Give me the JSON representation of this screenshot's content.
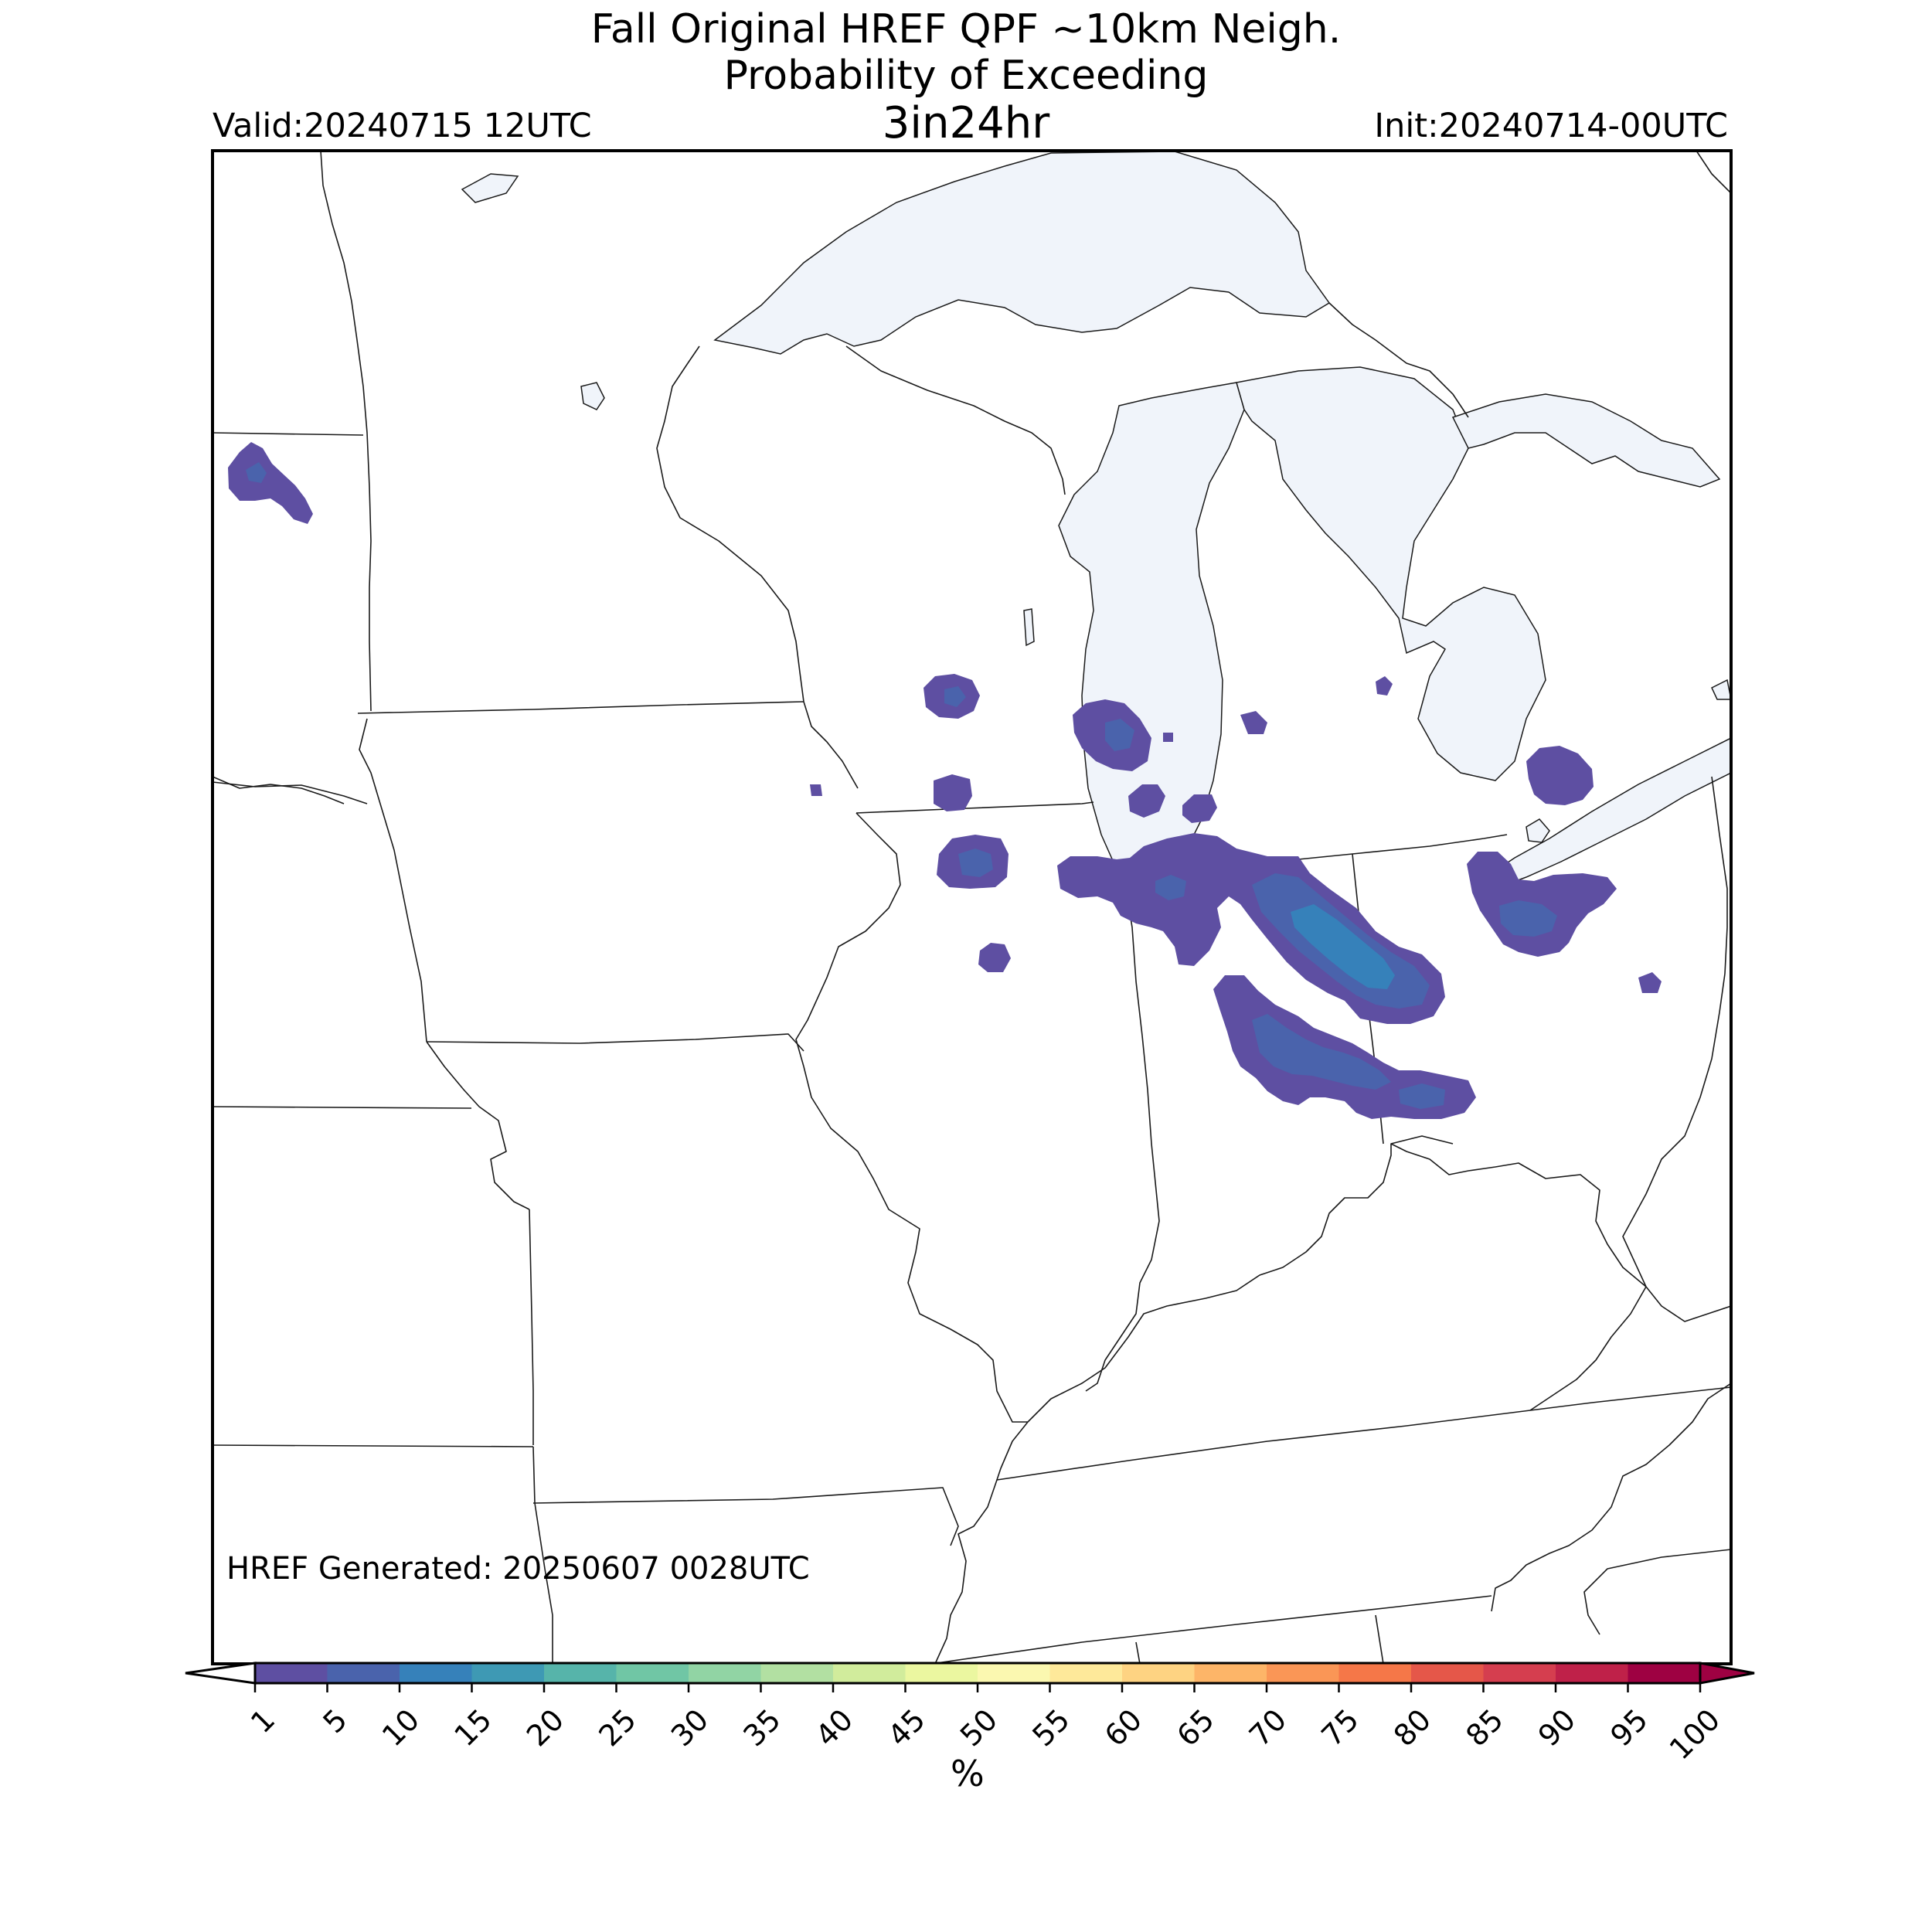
{
  "title": {
    "line1": "Fall Original HREF QPF ~10km Neigh.",
    "line2": "Probability of Exceeding",
    "line3": "3in24hr"
  },
  "valid_label": "Valid:20240715 12UTC",
  "init_label": "Init:20240714-00UTC",
  "generated_note": "HREF Generated: 20250607 0028UTC",
  "colorbar": {
    "unit": "%",
    "levels": [
      "1",
      "5",
      "10",
      "15",
      "20",
      "25",
      "30",
      "35",
      "40",
      "45",
      "50",
      "55",
      "60",
      "65",
      "70",
      "75",
      "80",
      "85",
      "90",
      "95",
      "100"
    ],
    "colors": [
      "#5e4fa2",
      "#4a63ac",
      "#3681ba",
      "#3e99b4",
      "#56b4aa",
      "#70c6a5",
      "#91d4a4",
      "#b2e0a2",
      "#d1ec9c",
      "#ebf7a0",
      "#fbf8b0",
      "#fee99a",
      "#fed382",
      "#fdb568",
      "#fa9656",
      "#f57748",
      "#e55749",
      "#d53e4f",
      "#bf2149",
      "#9e0142"
    ],
    "under_color": "#ffffff",
    "over_color": "#9e0142"
  },
  "map_colors": {
    "water": "#f0f4fa",
    "border": "#1a1a1a",
    "prob_low": "#5e4fa2",
    "prob_mid": "#4a63ac",
    "prob_high": "#3681ba"
  }
}
